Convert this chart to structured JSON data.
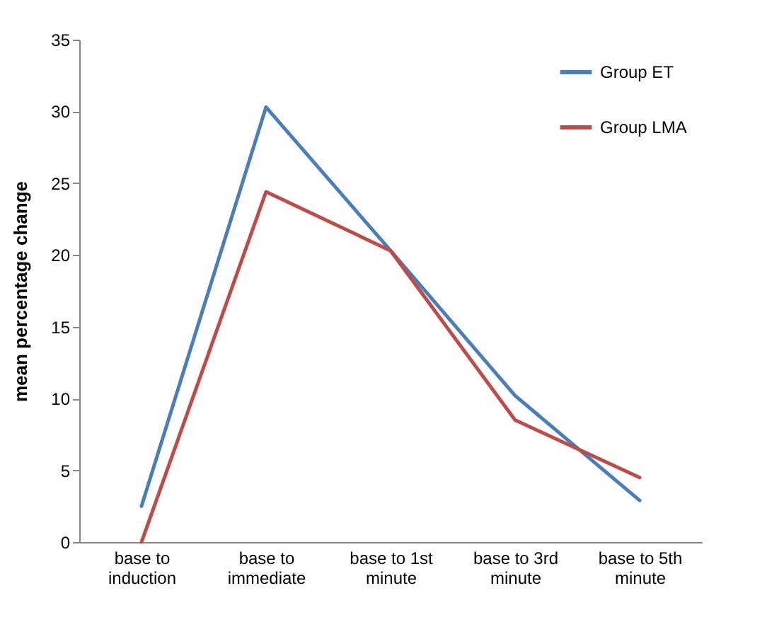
{
  "chart_data": {
    "type": "line",
    "ylabel": "mean percentage change",
    "categories": [
      "base to induction",
      "base to immediate",
      "base to 1st minute",
      "base to 3rd minute",
      "base to 5th minute"
    ],
    "series": [
      {
        "name": "Group ET",
        "color": "#4a7ebb",
        "values": [
          2.5,
          30.3,
          20.3,
          10.2,
          2.9
        ]
      },
      {
        "name": "Group LMA",
        "color": "#be4b48",
        "values": [
          0,
          24.4,
          20.3,
          8.5,
          4.5
        ]
      }
    ],
    "ylim": [
      0,
      35
    ],
    "yticks": [
      0,
      5,
      10,
      15,
      20,
      25,
      30,
      35
    ],
    "grid": false,
    "legend": "top right",
    "marker": "none",
    "line_style": "solid"
  }
}
